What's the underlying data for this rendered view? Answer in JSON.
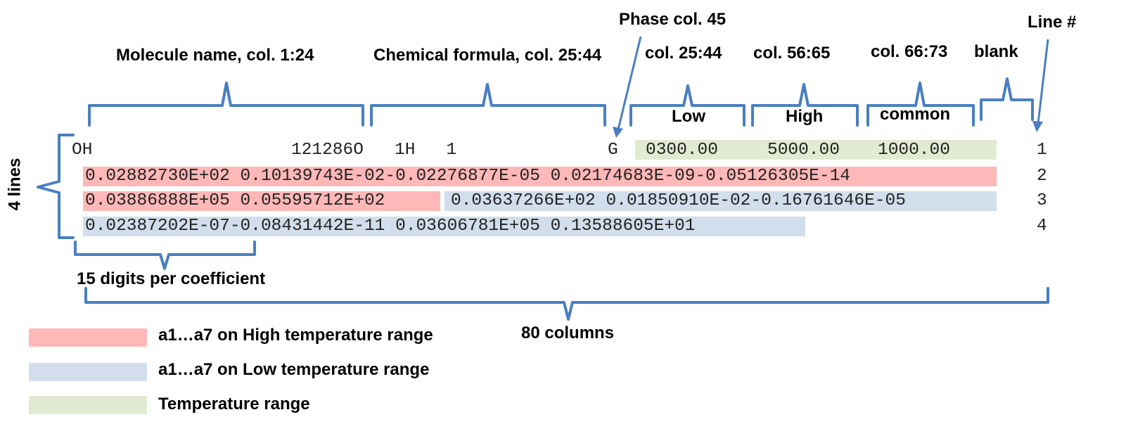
{
  "labels": {
    "phase": "Phase col. 45",
    "line_no": "Line #",
    "molecule": "Molecule name, col. 1:24",
    "formula": "Chemical formula, col. 25:44",
    "col_low": "col. 25:44",
    "col_high": "col. 56:65",
    "col_common": "col. 66:73",
    "blank": "blank",
    "low": "Low",
    "high": "High",
    "common": "common",
    "four_lines": "4 lines",
    "digits": "15 digits per coefficient",
    "columns": "80 columns"
  },
  "record": {
    "line1": {
      "name": "OH",
      "formula": "121286O   1H   1",
      "phase": "G",
      "low": "0300.00",
      "high": "5000.00",
      "common": "1000.00"
    },
    "line2": "0.02882730E+02 0.10139743E-02-0.02276877E-05 0.02174683E-09-0.05126305E-14",
    "line3a": "0.03886888E+05 0.05595712E+02",
    "line3b": "0.03637266E+02 0.01850910E-02-0.16761646E-05",
    "line4": "0.02387202E-07-0.08431442E-11 0.03606781E+05 0.13588605E+01",
    "line_numbers": [
      "1",
      "2",
      "3",
      "4"
    ]
  },
  "legend": [
    {
      "label": "a1…a7 on High temperature range",
      "color": "#ffb8b8"
    },
    {
      "label": "a1…a7 on Low temperature range",
      "color": "#d2deec"
    },
    {
      "label": "Temperature range",
      "color": "#e2ebd2"
    }
  ],
  "colors": {
    "brace": "#4a7fc0",
    "high_range": "#ffb8b8",
    "low_range": "#d2deec",
    "temp_range": "#e2ebd2"
  }
}
